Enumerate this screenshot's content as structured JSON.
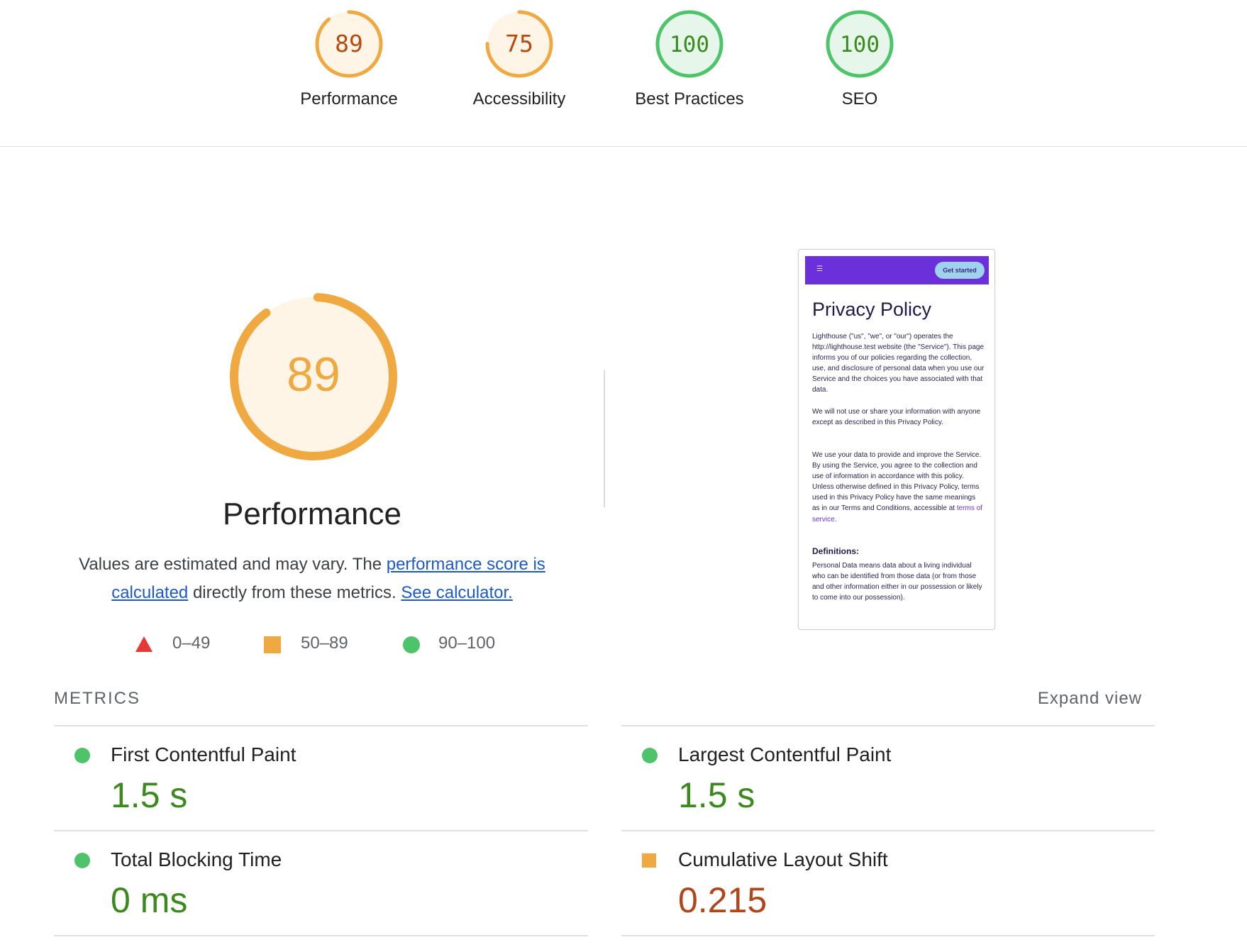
{
  "colors": {
    "pass": "#0c8a3e",
    "pass_ring": "#4ec46a",
    "pass_bg": "#e6f6ea",
    "average": "#f0a840",
    "average_text": "#b84a10",
    "average_bg": "#fef5e6",
    "fail": "#e53935",
    "link": "#1a59d1",
    "value_green": "#3a8a1e",
    "value_orange": "#b0461a"
  },
  "scores": [
    {
      "label": "Performance",
      "value": "89",
      "score": 89,
      "rating": "average"
    },
    {
      "label": "Accessibility",
      "value": "75",
      "score": 75,
      "rating": "average"
    },
    {
      "label": "Best Practices",
      "value": "100",
      "score": 100,
      "rating": "pass"
    },
    {
      "label": "SEO",
      "value": "100",
      "score": 100,
      "rating": "pass"
    }
  ],
  "performance": {
    "score": "89",
    "score_fraction": 0.89,
    "title": "Performance",
    "desc_part1": "Values are estimated and may vary. The ",
    "link_score": "performance score is calculated",
    "desc_part2": " directly from these metrics. ",
    "link_calculator": "See calculator."
  },
  "legend": [
    {
      "shape": "triangle-icon",
      "range": "0–49"
    },
    {
      "shape": "square-icon",
      "range": "50–89"
    },
    {
      "shape": "circle-icon",
      "range": "90–100"
    }
  ],
  "screenshot": {
    "cta": "Get started",
    "menu_icon": "menu-icon",
    "heading": "Privacy Policy",
    "p1": "Lighthouse (\"us\", \"we\", or \"our\") operates the http://lighthouse.test website (the \"Service\"). This page informs you of our policies regarding the collection, use, and disclosure of personal data when you use our Service and the choices you have associated with that data.",
    "p2": "We will not use or share your information with anyone except as described in this Privacy Policy.",
    "p3": "We use your data to provide and improve the Service. By using the Service, you agree to the collection and use of information in accordance with this policy. Unless otherwise defined in this Privacy Policy, terms used in this Privacy Policy have the same meanings as in our Terms and Conditions, accessible at ",
    "p3_link": "terms of service",
    "p3_end": ".",
    "definitions": "Definitions:",
    "p4": "Personal Data means data about a living individual who can be identified from those data (or from those and other information either in our possession or likely to come into our possession)."
  },
  "metrics": {
    "heading": "METRICS",
    "expand": "Expand view",
    "items": [
      {
        "name": "First Contentful Paint",
        "value": "1.5 s",
        "rating": "pass"
      },
      {
        "name": "Largest Contentful Paint",
        "value": "1.5 s",
        "rating": "pass"
      },
      {
        "name": "Total Blocking Time",
        "value": "0 ms",
        "rating": "pass"
      },
      {
        "name": "Cumulative Layout Shift",
        "value": "0.215",
        "rating": "average"
      }
    ]
  }
}
